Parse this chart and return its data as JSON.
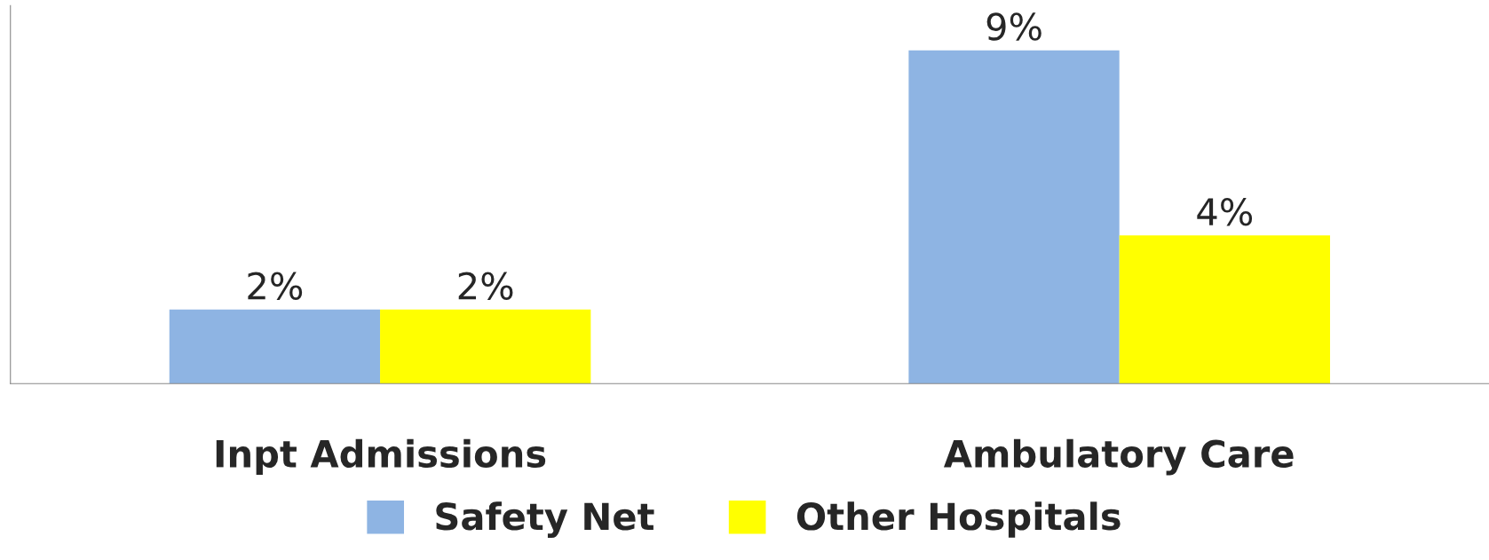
{
  "chart_data": {
    "type": "bar",
    "categories": [
      "Inpt Admissions",
      "Ambulatory Care"
    ],
    "series": [
      {
        "name": "Safety Net",
        "color": "#8eb4e3",
        "values": [
          2,
          9
        ],
        "value_labels": [
          "2%",
          "9%"
        ]
      },
      {
        "name": "Other Hospitals",
        "color": "#ffff00",
        "values": [
          2,
          4
        ],
        "value_labels": [
          "2%",
          "4%"
        ]
      }
    ],
    "tick_labels": "x",
    "grid": false,
    "legend": "bottom"
  }
}
